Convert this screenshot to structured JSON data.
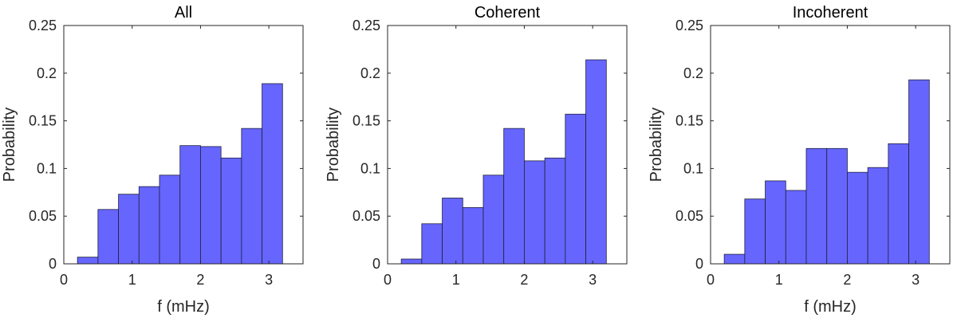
{
  "chart_data": [
    {
      "type": "bar",
      "title": "All",
      "xlabel": "f (mHz)",
      "ylabel": "Probability",
      "bin_edges": [
        0.2,
        0.5,
        0.8,
        1.1,
        1.4,
        1.7,
        2.0,
        2.3,
        2.6,
        2.9,
        3.2
      ],
      "values": [
        0.007,
        0.057,
        0.073,
        0.081,
        0.093,
        0.124,
        0.123,
        0.111,
        0.142,
        0.189
      ],
      "xlim": [
        0,
        3.5
      ],
      "ylim": [
        0,
        0.25
      ],
      "xticks": [
        "0",
        "1",
        "2",
        "3"
      ],
      "yticks": [
        "0",
        "0.05",
        "0.1",
        "0.15",
        "0.2",
        "0.25"
      ],
      "grid": false
    },
    {
      "type": "bar",
      "title": "Coherent",
      "xlabel": "",
      "ylabel": "Probability",
      "bin_edges": [
        0.2,
        0.5,
        0.8,
        1.1,
        1.4,
        1.7,
        2.0,
        2.3,
        2.6,
        2.9,
        3.2
      ],
      "values": [
        0.005,
        0.042,
        0.069,
        0.059,
        0.093,
        0.142,
        0.108,
        0.111,
        0.157,
        0.214
      ],
      "xlim": [
        0,
        3.5
      ],
      "ylim": [
        0,
        0.25
      ],
      "xticks": [
        "0",
        "1",
        "2",
        "3"
      ],
      "yticks": [
        "0",
        "0.05",
        "0.1",
        "0.15",
        "0.2",
        "0.25"
      ],
      "grid": false
    },
    {
      "type": "bar",
      "title": "Incoherent",
      "xlabel": "f (mHz)",
      "ylabel": "Probability",
      "bin_edges": [
        0.2,
        0.5,
        0.8,
        1.1,
        1.4,
        1.7,
        2.0,
        2.3,
        2.6,
        2.9,
        3.2
      ],
      "values": [
        0.01,
        0.068,
        0.087,
        0.077,
        0.121,
        0.121,
        0.096,
        0.101,
        0.126,
        0.193
      ],
      "xlim": [
        0,
        3.5
      ],
      "ylim": [
        0,
        0.25
      ],
      "xticks": [
        "0",
        "1",
        "2",
        "3"
      ],
      "yticks": [
        "0",
        "0.05",
        "0.1",
        "0.15",
        "0.2",
        "0.25"
      ],
      "grid": false
    }
  ],
  "colors": {
    "bar_fill": "#6666ff",
    "bar_edge": "#1f1f3f",
    "axis": "#262626"
  }
}
